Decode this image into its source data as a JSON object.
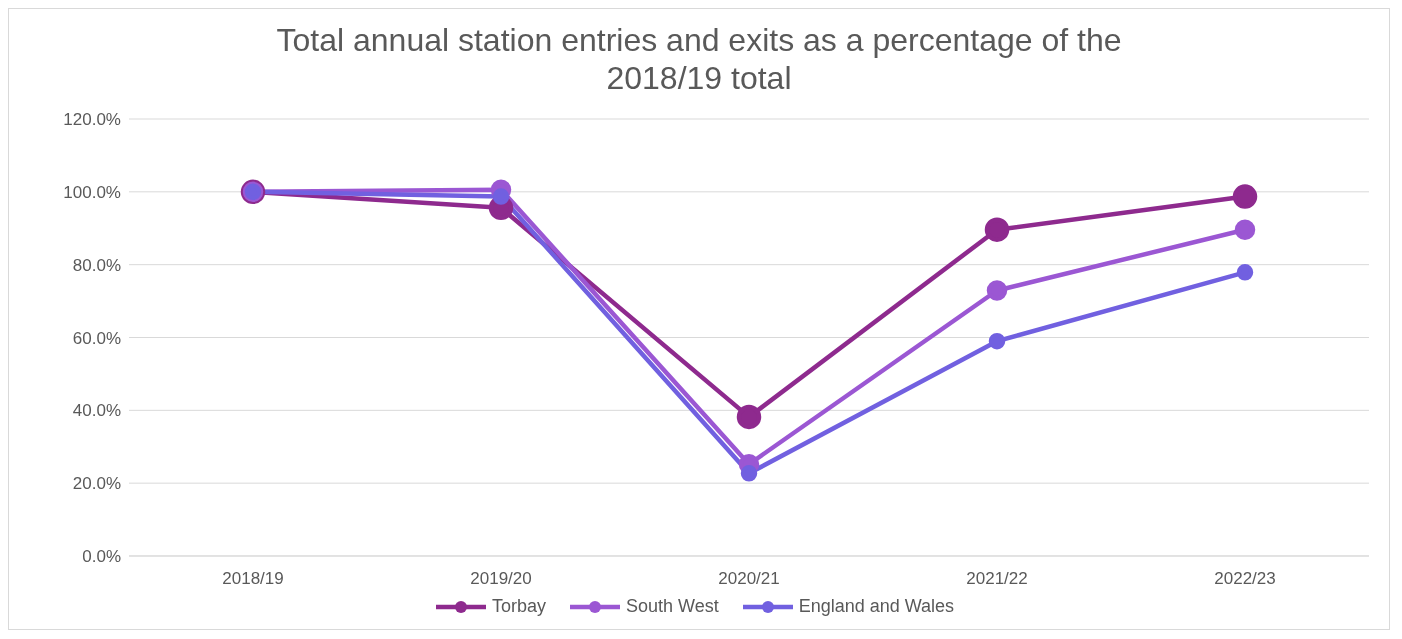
{
  "chart_data": {
    "type": "line",
    "title": "Total annual station entries and exits as a percentage of the 2018/19 total",
    "categories": [
      "2018/19",
      "2019/20",
      "2020/21",
      "2021/22",
      "2022/23"
    ],
    "series": [
      {
        "name": "Torbay",
        "color": "#8e2a8e",
        "values": [
          100,
          95.6,
          38.2,
          89.6,
          98.7
        ]
      },
      {
        "name": "South West",
        "color": "#9b57d3",
        "values": [
          100,
          100.6,
          25.2,
          72.9,
          89.6
        ]
      },
      {
        "name": "England and Wales",
        "color": "#7160e0",
        "values": [
          100,
          98.7,
          22.7,
          59.0,
          77.9
        ]
      }
    ],
    "ylim": [
      0,
      120
    ],
    "yticks": [
      {
        "value": 0,
        "label": "0.0%"
      },
      {
        "value": 20,
        "label": "20.0%"
      },
      {
        "value": 40,
        "label": "40.0%"
      },
      {
        "value": 60,
        "label": "60.0%"
      },
      {
        "value": 80,
        "label": "80.0%"
      },
      {
        "value": 100,
        "label": "100.0%"
      },
      {
        "value": 120,
        "label": "120.0%"
      }
    ],
    "grid": "y",
    "legend": "bottom",
    "marker": "circle",
    "line_style": "solid"
  }
}
